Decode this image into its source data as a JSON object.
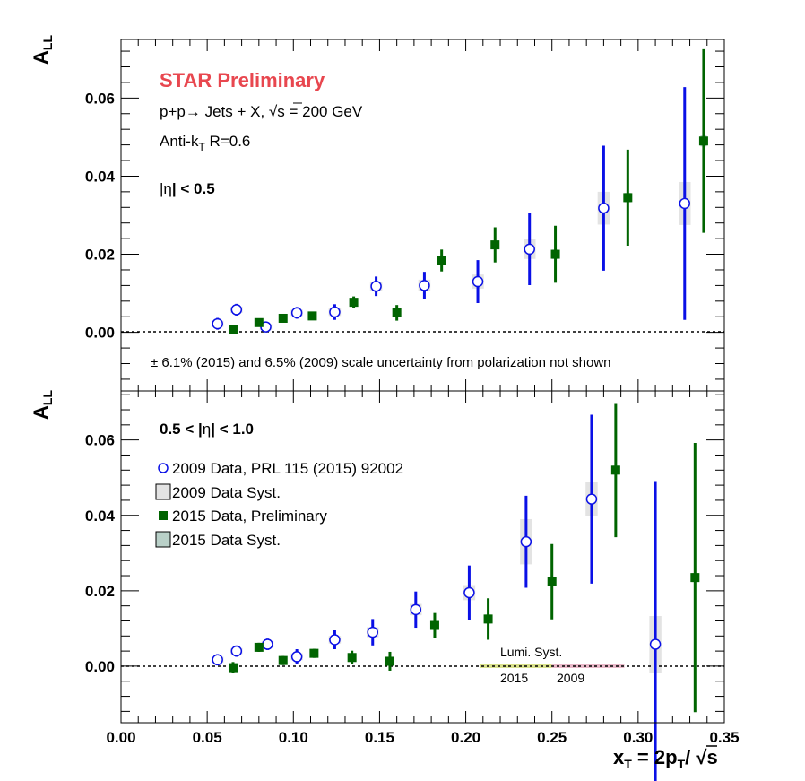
{
  "colors": {
    "star_red": "#e8474f",
    "data_2009": "#0a10e6",
    "data_2015": "#006400",
    "syst_2009": "#e3e3e3",
    "syst_2015": "#b9d0c8",
    "lumi_2015": "#d8e08a",
    "lumi_2009": "#e8b8c8"
  },
  "chart_data": [
    {
      "type": "scatter",
      "panel": "top",
      "ylabel_main": "A",
      "ylabel_sub": "LL",
      "xlim": [
        0.0,
        0.35
      ],
      "ylim": [
        -0.015,
        0.075
      ],
      "yticks": [
        "0.00",
        "0.02",
        "0.04",
        "0.06"
      ],
      "annotations": {
        "star": "STAR Preliminary",
        "process_a": "p+p",
        "process_b": " Jets + X, ",
        "sqrt_s_value": "s = 200 GeV",
        "algo_a": "Anti-k",
        "algo_sub": "T",
        "algo_b": " R=0.6",
        "eta_a": "|",
        "eta_b": "η",
        "eta_c": "| < 0.5",
        "scale_pm": "±",
        "scale_text": " 6.1% (2015) and 6.5% (2009) scale uncertainty from polarization not shown"
      },
      "series": [
        {
          "name": "2009 Data, PRL 115 (2015) 92002",
          "marker": "open-circle",
          "points": [
            {
              "x": 0.056,
              "y": 0.0022,
              "err": 0.0015,
              "syst": 0.0008
            },
            {
              "x": 0.067,
              "y": 0.0058,
              "err": 0.0015,
              "syst": 0.0008
            },
            {
              "x": 0.084,
              "y": 0.0014,
              "err": 0.0012,
              "syst": 0.0008
            },
            {
              "x": 0.102,
              "y": 0.005,
              "err": 0.0015,
              "syst": 0.0008
            },
            {
              "x": 0.124,
              "y": 0.0052,
              "err": 0.002,
              "syst": 0.001
            },
            {
              "x": 0.148,
              "y": 0.0118,
              "err": 0.0025,
              "syst": 0.0012
            },
            {
              "x": 0.176,
              "y": 0.012,
              "err": 0.0035,
              "syst": 0.0015
            },
            {
              "x": 0.207,
              "y": 0.013,
              "err": 0.0055,
              "syst": 0.0018
            },
            {
              "x": 0.237,
              "y": 0.0213,
              "err": 0.0092,
              "syst": 0.0025
            },
            {
              "x": 0.28,
              "y": 0.0318,
              "err": 0.016,
              "syst": 0.0042
            },
            {
              "x": 0.327,
              "y": 0.033,
              "err": 0.0298,
              "syst": 0.0055
            }
          ]
        },
        {
          "name": "2015 Data, Preliminary",
          "marker": "filled-square",
          "points": [
            {
              "x": 0.065,
              "y": 0.0008,
              "err": 0.001,
              "syst": 0.0004
            },
            {
              "x": 0.08,
              "y": 0.0025,
              "err": 0.001,
              "syst": 0.0004
            },
            {
              "x": 0.094,
              "y": 0.0036,
              "err": 0.001,
              "syst": 0.0004
            },
            {
              "x": 0.111,
              "y": 0.0042,
              "err": 0.001,
              "syst": 0.0005
            },
            {
              "x": 0.135,
              "y": 0.0077,
              "err": 0.0015,
              "syst": 0.0006
            },
            {
              "x": 0.16,
              "y": 0.005,
              "err": 0.002,
              "syst": 0.0007
            },
            {
              "x": 0.186,
              "y": 0.0184,
              "err": 0.0028,
              "syst": 0.0008
            },
            {
              "x": 0.217,
              "y": 0.0224,
              "err": 0.0045,
              "syst": 0.001
            },
            {
              "x": 0.252,
              "y": 0.02,
              "err": 0.0073,
              "syst": 0.0012
            },
            {
              "x": 0.294,
              "y": 0.0345,
              "err": 0.0123,
              "syst": 0.0012
            },
            {
              "x": 0.338,
              "y": 0.049,
              "err": 0.0235,
              "syst": 0.0014
            }
          ]
        }
      ]
    },
    {
      "type": "scatter",
      "panel": "bottom",
      "ylabel_main": "A",
      "ylabel_sub": "LL",
      "xlabel_parts": [
        "x",
        "T",
        " = 2p",
        "T",
        "/ ",
        "s"
      ],
      "xlim": [
        0.0,
        0.35
      ],
      "ylim": [
        -0.015,
        0.073
      ],
      "xticks": [
        "0.00",
        "0.05",
        "0.10",
        "0.15",
        "0.20",
        "0.25",
        "0.30",
        "0.35"
      ],
      "yticks": [
        "0.00",
        "0.02",
        "0.04",
        "0.06"
      ],
      "annotations": {
        "eta_a": "0.5 < |",
        "eta_b": "η",
        "eta_c": "| < 1.0",
        "lumi_label": "Lumi. Syst.",
        "lumi_2015": "2015",
        "lumi_2009": "2009"
      },
      "legend": [
        {
          "label": "2009 Data, PRL 115 (2015) 92002",
          "marker": "open-circle"
        },
        {
          "label": "2009 Data Syst.",
          "marker": "syst-2009"
        },
        {
          "label": "2015 Data, Preliminary",
          "marker": "filled-square"
        },
        {
          "label": "2015 Data Syst.",
          "marker": "syst-2015"
        }
      ],
      "series": [
        {
          "name": "2009 Data, PRL 115 (2015) 92002",
          "marker": "open-circle",
          "points": [
            {
              "x": 0.056,
              "y": 0.0017,
              "err": 0.0015,
              "syst": 0.0008
            },
            {
              "x": 0.067,
              "y": 0.004,
              "err": 0.0015,
              "syst": 0.0008
            },
            {
              "x": 0.085,
              "y": 0.0058,
              "err": 0.0015,
              "syst": 0.0009
            },
            {
              "x": 0.102,
              "y": 0.0025,
              "err": 0.002,
              "syst": 0.0009
            },
            {
              "x": 0.124,
              "y": 0.007,
              "err": 0.0025,
              "syst": 0.001
            },
            {
              "x": 0.146,
              "y": 0.009,
              "err": 0.0035,
              "syst": 0.0013
            },
            {
              "x": 0.171,
              "y": 0.015,
              "err": 0.0048,
              "syst": 0.0015
            },
            {
              "x": 0.202,
              "y": 0.0195,
              "err": 0.0072,
              "syst": 0.002
            },
            {
              "x": 0.235,
              "y": 0.033,
              "err": 0.0122,
              "syst": 0.006
            },
            {
              "x": 0.273,
              "y": 0.0443,
              "err": 0.0224,
              "syst": 0.0045
            },
            {
              "x": 0.31,
              "y": 0.0058,
              "err": 0.0433,
              "syst": 0.0075
            }
          ]
        },
        {
          "name": "2015 Data, Preliminary",
          "marker": "filled-square",
          "points": [
            {
              "x": 0.065,
              "y": -0.0004,
              "err": 0.0015,
              "syst": 0.0004
            },
            {
              "x": 0.08,
              "y": 0.005,
              "err": 0.0012,
              "syst": 0.0005
            },
            {
              "x": 0.094,
              "y": 0.0015,
              "err": 0.0012,
              "syst": 0.0005
            },
            {
              "x": 0.112,
              "y": 0.0034,
              "err": 0.0012,
              "syst": 0.0006
            },
            {
              "x": 0.134,
              "y": 0.0023,
              "err": 0.0018,
              "syst": 0.0007
            },
            {
              "x": 0.156,
              "y": 0.0013,
              "err": 0.0025,
              "syst": 0.0008
            },
            {
              "x": 0.182,
              "y": 0.0108,
              "err": 0.0033,
              "syst": 0.001
            },
            {
              "x": 0.213,
              "y": 0.0125,
              "err": 0.0055,
              "syst": 0.0012
            },
            {
              "x": 0.25,
              "y": 0.0224,
              "err": 0.01,
              "syst": 0.0011
            },
            {
              "x": 0.287,
              "y": 0.052,
              "err": 0.0178,
              "syst": 0.0012
            },
            {
              "x": 0.333,
              "y": 0.0235,
              "err": 0.0357,
              "syst": 0.0012
            }
          ]
        }
      ],
      "lumi_bands": [
        {
          "label": "2015",
          "x": [
            0.208,
            0.25
          ],
          "y": 0.0
        },
        {
          "label": "2009",
          "x": [
            0.25,
            0.292
          ],
          "y": 0.0
        }
      ]
    }
  ]
}
